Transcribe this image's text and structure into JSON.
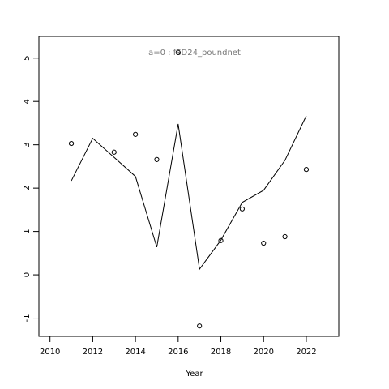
{
  "chart_data": {
    "type": "line",
    "title": "a=0 : fSD24_poundnet",
    "x_label": "Year",
    "x": [
      2011,
      2012,
      2013,
      2014,
      2015,
      2016,
      2017,
      2018,
      2019,
      2020,
      2021,
      2022
    ],
    "series": [
      {
        "type": "line",
        "color": "#000000",
        "values": [
          2.17,
          3.15,
          2.71,
          2.27,
          0.64,
          3.48,
          0.13,
          0.8,
          1.67,
          1.95,
          2.64,
          3.67
        ]
      },
      {
        "type": "scatter",
        "color": "#000000",
        "values": [
          3.03,
          null,
          2.83,
          3.24,
          2.66,
          5.13,
          -1.18,
          0.79,
          1.52,
          0.73,
          0.88,
          2.43
        ]
      }
    ],
    "xlim": [
      2009.48,
      2023.52
    ],
    "xticks": [
      2010,
      2012,
      2014,
      2016,
      2018,
      2020,
      2022
    ],
    "ylim": [
      -1.42,
      5.5
    ],
    "yticks": [
      -1,
      0,
      1,
      2,
      3,
      4,
      5
    ]
  }
}
